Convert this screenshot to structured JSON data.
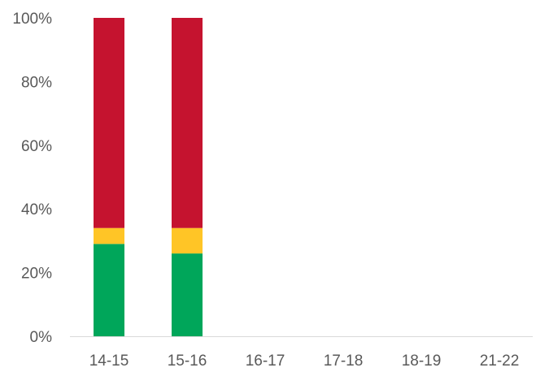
{
  "chart_data": {
    "type": "bar",
    "stacked": true,
    "categories": [
      "14-15",
      "15-16",
      "16-17",
      "17-18",
      "18-19",
      "21-22"
    ],
    "series": [
      {
        "color": "#00A65A",
        "values": [
          29,
          26,
          0,
          0,
          0,
          0
        ]
      },
      {
        "color": "#FFC526",
        "values": [
          5,
          8,
          0,
          0,
          0,
          0
        ]
      },
      {
        "color": "#C5132F",
        "values": [
          66,
          66,
          0,
          0,
          0,
          0
        ]
      }
    ],
    "yticks": [
      "0%",
      "20%",
      "40%",
      "60%",
      "80%",
      "100%"
    ],
    "ylim": [
      0,
      100
    ],
    "grid": false,
    "legend": "none"
  }
}
